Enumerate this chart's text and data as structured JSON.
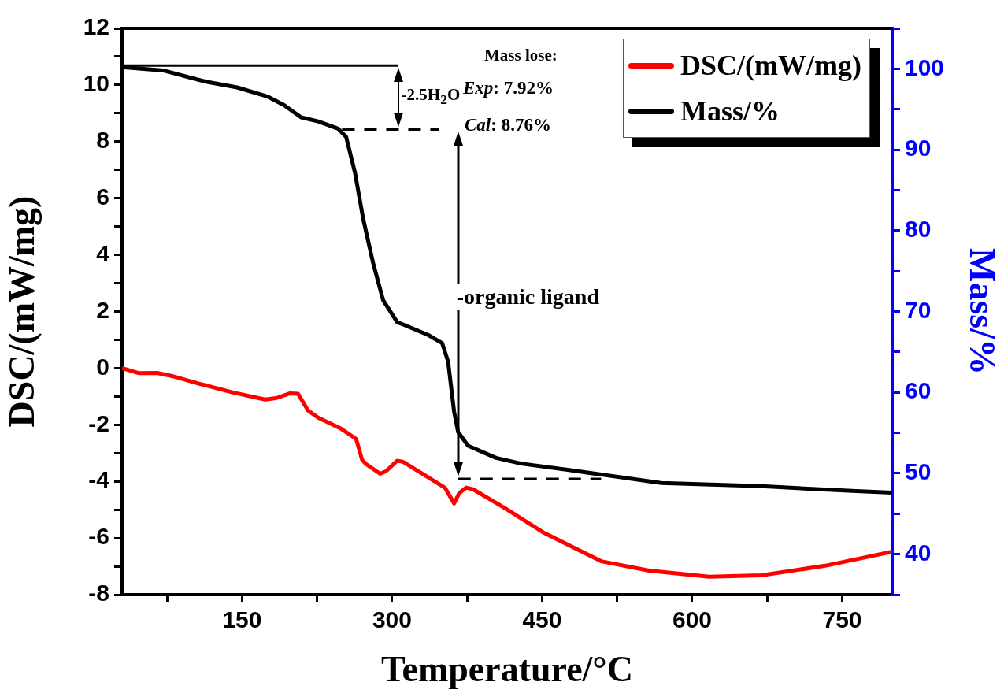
{
  "chart_data": {
    "type": "line",
    "xlabel": "Temperature/°C",
    "ylabel": "DSC/(mW/mg)",
    "y2label": "Mass/%",
    "xlim": [
      30,
      800
    ],
    "xticks": [
      {
        "value": 75,
        "label": null
      },
      150,
      {
        "value": 225,
        "label": null
      },
      300,
      {
        "value": 375,
        "label": null
      },
      450,
      {
        "value": 525,
        "label": null
      },
      600,
      {
        "value": 675,
        "label": null
      },
      750
    ],
    "ylim": [
      -8,
      12
    ],
    "yticks": [
      -8,
      {
        "value": -7,
        "label": null
      },
      -6,
      {
        "value": -5,
        "label": null
      },
      -4,
      {
        "value": -3,
        "label": null
      },
      -2,
      {
        "value": -1,
        "label": null
      },
      0,
      {
        "value": 1,
        "label": null
      },
      2,
      {
        "value": 3,
        "label": null
      },
      4,
      {
        "value": 5,
        "label": null
      },
      6,
      {
        "value": 7,
        "label": null
      },
      8,
      {
        "value": 9,
        "label": null
      },
      10,
      {
        "value": 11,
        "label": null
      },
      12
    ],
    "y2lim": [
      35,
      105
    ],
    "y2ticks": [
      {
        "value": 35,
        "label": null
      },
      40,
      {
        "value": 45,
        "label": null
      },
      50,
      {
        "value": 55,
        "label": null
      },
      60,
      {
        "value": 65,
        "label": null
      },
      70,
      {
        "value": 75,
        "label": null
      },
      80,
      {
        "value": 85,
        "label": null
      },
      90,
      {
        "value": 95,
        "label": null
      },
      100,
      {
        "value": 105,
        "label": null
      }
    ],
    "grid": false,
    "legend": "top right",
    "marker": "none",
    "line_style": "solid",
    "annotations": [
      "-2.5H$_{2}$O",
      "Mass lose:",
      "Exp: 7.92%",
      "Cal: 8.76%",
      "-organic ligand"
    ],
    "series": [
      {
        "name": "DSC/(mW/mg)",
        "color": "#ff0000",
        "x": [
          30,
          47,
          65,
          80,
          108,
          141,
          173,
          184,
          198,
          206,
          216,
          226,
          249,
          264,
          270,
          274,
          288,
          294,
          305,
          311,
          353,
          362,
          367,
          374,
          381,
          413,
          451,
          509,
          557,
          617,
          669,
          733,
          800
        ],
        "values": [
          0.0,
          -0.18,
          -0.17,
          -0.28,
          -0.56,
          -0.86,
          -1.11,
          -1.06,
          -0.89,
          -0.91,
          -1.5,
          -1.75,
          -2.14,
          -2.5,
          -3.24,
          -3.39,
          -3.73,
          -3.64,
          -3.27,
          -3.31,
          -4.23,
          -4.78,
          -4.42,
          -4.22,
          -4.28,
          -4.95,
          -5.8,
          -6.82,
          -7.15,
          -7.37,
          -7.32,
          -6.98,
          -6.48
        ]
      },
      {
        "name": "Mass/%",
        "color": "#000000",
        "axis": "y2",
        "x": [
          30,
          71,
          114,
          145,
          175,
          192,
          209,
          226,
          246,
          254,
          263,
          271,
          281,
          291,
          305,
          336,
          350,
          356,
          362,
          366,
          376,
          404,
          429,
          477,
          569,
          669,
          764,
          800
        ],
        "values": [
          100.2,
          99.8,
          98.4,
          97.7,
          96.6,
          95.5,
          94.0,
          93.5,
          92.6,
          91.6,
          87.1,
          81.5,
          76.0,
          71.4,
          68.7,
          67.1,
          66.1,
          63.8,
          57.6,
          55.1,
          53.4,
          51.9,
          51.2,
          50.4,
          48.8,
          48.4,
          47.8,
          47.6
        ]
      },
      {
        "color": "#000000",
        "axis": "y2",
        "x": [
          30,
          306
        ],
        "values": [
          100.4,
          100.4
        ]
      },
      {
        "color": "#000000",
        "axis": "y2",
        "line_style": "dashed",
        "x": [
          250,
          347
        ],
        "values": [
          92.5,
          92.5
        ]
      },
      {
        "color": "#000000",
        "axis": "y2",
        "line_style": "dashed",
        "x": [
          366,
          509
        ],
        "values": [
          49.3,
          49.3
        ]
      }
    ]
  }
}
